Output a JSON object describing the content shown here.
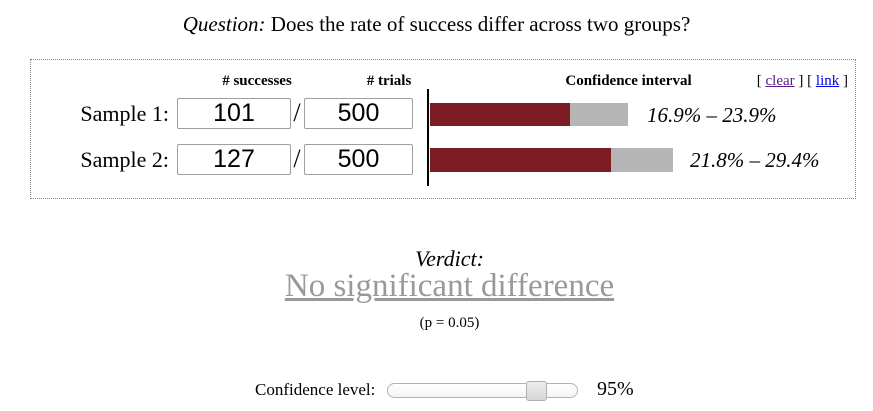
{
  "title": {
    "lead": "Question:",
    "text": " Does the rate of success differ across two groups?"
  },
  "panel": {
    "col_successes": "# successes",
    "col_trials": "# trials",
    "col_ci": "Confidence interval",
    "divider": "/",
    "links": {
      "open": "[ ",
      "clear": "clear",
      "between": " ] [ ",
      "link": "link",
      "close": " ]"
    },
    "rows": [
      {
        "label": "Sample 1:",
        "successes": "101",
        "trials": "500",
        "ci_low_pct": 16.9,
        "ci_high_pct": 23.9,
        "ci_text": "16.9% – 23.9%"
      },
      {
        "label": "Sample 2:",
        "successes": "127",
        "trials": "500",
        "ci_low_pct": 21.8,
        "ci_high_pct": 29.4,
        "ci_text": "21.8% – 29.4%"
      }
    ]
  },
  "verdict": {
    "heading": "Verdict:",
    "result": "No significant difference",
    "p_note": "(p = 0.05)"
  },
  "confidence": {
    "label": "Confidence level:",
    "display": "95%",
    "percent": 95
  },
  "colors": {
    "bar_dark": "#7D1C23",
    "bar_gray": "#B5B5B5",
    "verdict_gray": "#999999",
    "link_clear": "#551A8B",
    "link_link": "#0000EE"
  }
}
